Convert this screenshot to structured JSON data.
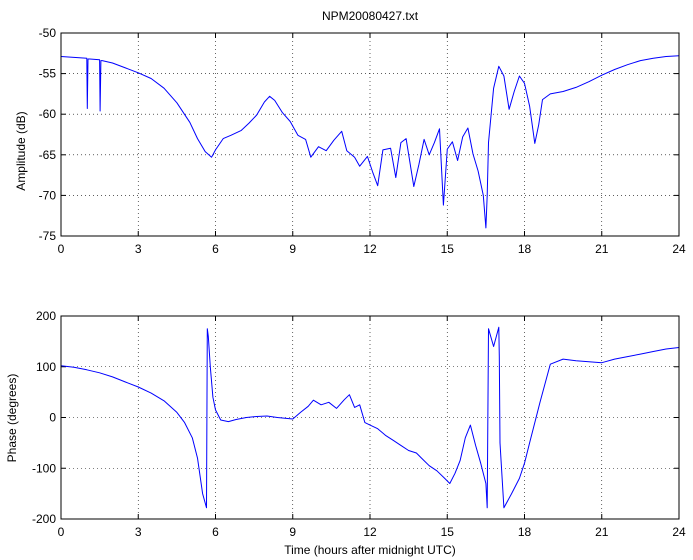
{
  "chart_data": [
    {
      "type": "line",
      "title": "NPM20080427.txt",
      "xlabel": "",
      "ylabel": "Amplitude (dB)",
      "xlim": [
        0,
        24
      ],
      "ylim": [
        -75,
        -50
      ],
      "xticks": [
        0,
        3,
        6,
        9,
        12,
        15,
        18,
        21,
        24
      ],
      "yticks": [
        -50,
        -55,
        -60,
        -65,
        -70,
        -75
      ],
      "grid": true,
      "series": [
        {
          "color": "#0000ff",
          "x": [
            0,
            0.5,
            1.0,
            1.02,
            1.05,
            1.1,
            1.12,
            1.5,
            1.52,
            1.55,
            1.6,
            2.0,
            2.5,
            3.0,
            3.5,
            4.0,
            4.5,
            5.0,
            5.3,
            5.6,
            5.85,
            6.0,
            6.3,
            6.6,
            7.0,
            7.3,
            7.6,
            7.9,
            8.1,
            8.3,
            8.6,
            8.9,
            9.2,
            9.5,
            9.7,
            10.0,
            10.3,
            10.6,
            10.9,
            11.1,
            11.4,
            11.6,
            11.9,
            12.1,
            12.3,
            12.5,
            12.8,
            13.0,
            13.2,
            13.4,
            13.7,
            13.9,
            14.1,
            14.3,
            14.5,
            14.7,
            14.85,
            15.0,
            15.2,
            15.4,
            15.6,
            15.8,
            16.0,
            16.2,
            16.4,
            16.5,
            16.55,
            16.6,
            16.8,
            17.0,
            17.2,
            17.4,
            17.6,
            17.8,
            18.0,
            18.2,
            18.4,
            18.55,
            18.7,
            19.0,
            19.5,
            20.0,
            20.5,
            21.0,
            21.5,
            22.0,
            22.5,
            23.0,
            23.5,
            24.0
          ],
          "values": [
            -52.9,
            -53.0,
            -53.1,
            -59.3,
            -53.2,
            -53.2,
            -53.2,
            -53.3,
            -59.6,
            -53.4,
            -53.4,
            -53.7,
            -54.3,
            -54.9,
            -55.6,
            -56.8,
            -58.6,
            -61.0,
            -63.0,
            -64.6,
            -65.3,
            -64.4,
            -63.0,
            -62.6,
            -62.0,
            -61.1,
            -60.1,
            -58.5,
            -57.8,
            -58.3,
            -59.8,
            -60.9,
            -62.6,
            -63.1,
            -65.3,
            -64.0,
            -64.5,
            -63.2,
            -62.1,
            -64.5,
            -65.3,
            -66.4,
            -65.2,
            -67.1,
            -68.8,
            -64.4,
            -64.2,
            -67.8,
            -63.5,
            -63.0,
            -68.9,
            -66.2,
            -63.1,
            -65.0,
            -63.5,
            -61.8,
            -71.2,
            -64.3,
            -63.4,
            -65.7,
            -62.8,
            -61.7,
            -64.9,
            -67.0,
            -70.0,
            -74.0,
            -70.0,
            -63.5,
            -56.8,
            -54.1,
            -55.3,
            -59.4,
            -57.2,
            -55.3,
            -56.2,
            -59.0,
            -63.6,
            -61.3,
            -58.2,
            -57.5,
            -57.2,
            -56.7,
            -56.0,
            -55.2,
            -54.5,
            -53.9,
            -53.4,
            -53.1,
            -52.9,
            -52.8
          ]
        }
      ]
    },
    {
      "type": "line",
      "title": "",
      "xlabel": "Time (hours after midnight UTC)",
      "ylabel": "Phase (degrees)",
      "xlim": [
        0,
        24
      ],
      "ylim": [
        -200,
        200
      ],
      "xticks": [
        0,
        3,
        6,
        9,
        12,
        15,
        18,
        21,
        24
      ],
      "yticks": [
        200,
        100,
        0,
        -100,
        -200
      ],
      "grid": true,
      "series": [
        {
          "color": "#0000ff",
          "x": [
            0,
            0.5,
            1.0,
            1.5,
            2.0,
            2.5,
            3.0,
            3.5,
            4.0,
            4.5,
            4.8,
            5.1,
            5.3,
            5.5,
            5.65,
            5.68,
            5.72,
            5.8,
            5.9,
            6.0,
            6.2,
            6.5,
            6.8,
            7.2,
            7.6,
            8.0,
            8.4,
            8.8,
            9.0,
            9.3,
            9.6,
            9.8,
            10.1,
            10.4,
            10.7,
            11.0,
            11.2,
            11.4,
            11.6,
            11.8,
            12.0,
            12.3,
            12.6,
            12.9,
            13.2,
            13.5,
            13.8,
            14.0,
            14.3,
            14.6,
            14.9,
            15.1,
            15.3,
            15.5,
            15.7,
            15.9,
            16.1,
            16.3,
            16.5,
            16.55,
            16.6,
            16.8,
            17.0,
            17.02,
            17.05,
            17.2,
            17.5,
            17.8,
            18.0,
            18.2,
            18.4,
            18.6,
            19.0,
            19.5,
            20.0,
            20.5,
            21.0,
            21.5,
            22.0,
            22.5,
            23.0,
            23.5,
            24.0
          ],
          "values": [
            102,
            99,
            94,
            88,
            80,
            70,
            60,
            48,
            33,
            10,
            -10,
            -40,
            -80,
            -150,
            -178,
            175,
            160,
            100,
            40,
            15,
            -5,
            -8,
            -4,
            0,
            2,
            3,
            0,
            -2,
            -3,
            10,
            22,
            34,
            25,
            30,
            18,
            35,
            45,
            20,
            25,
            -10,
            -15,
            -22,
            -35,
            -45,
            -55,
            -65,
            -70,
            -80,
            -95,
            -105,
            -120,
            -130,
            -110,
            -85,
            -40,
            -15,
            -55,
            -90,
            -130,
            -178,
            175,
            140,
            178,
            120,
            -50,
            -178,
            -150,
            -120,
            -90,
            -50,
            -10,
            30,
            105,
            115,
            112,
            110,
            108,
            115,
            120,
            125,
            130,
            135,
            138
          ]
        }
      ]
    }
  ]
}
